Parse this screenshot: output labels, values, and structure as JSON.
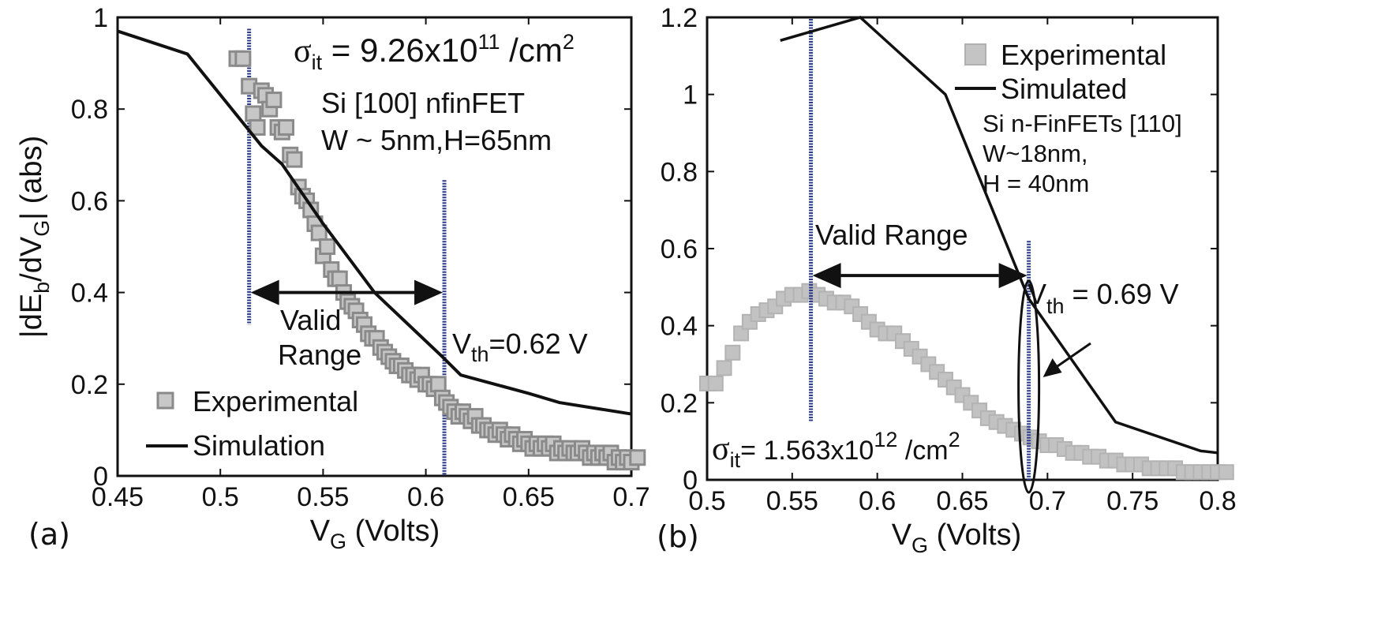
{
  "chart_data": [
    {
      "panel": "(a)",
      "type": "scatter",
      "xlabel": "V_G (Volts)",
      "ylabel": "|dE_b/dV_G| (abs)",
      "xlim": [
        0.45,
        0.7
      ],
      "ylim": [
        0,
        1
      ],
      "x_ticks": [
        "0.45",
        "0.5",
        "0.55",
        "0.6",
        "0.65",
        "0.7"
      ],
      "y_ticks": [
        "0",
        "0.2",
        "0.4",
        "0.6",
        "0.8",
        "1"
      ],
      "legend": [
        {
          "name": "Experimental"
        },
        {
          "name": "Simulation"
        }
      ],
      "legend_position": "bottom-left",
      "annotations": {
        "sigma": "σ",
        "sigma_sub": "it",
        "sigma_value": " = 9.26x10",
        "sigma_exp": "11",
        "sigma_unit": " /cm",
        "sigma_unit_exp": "2",
        "device_line1": "Si [100] nfinFET",
        "device_line2": "W ~ 5nm,H=65nm",
        "valid_line1": "Valid",
        "valid_line2": "Range",
        "vth_main": "V",
        "vth_sub": "th",
        "vth_value": "=0.62 V"
      },
      "valid_range": [
        0.514,
        0.609
      ],
      "valid_arrow_y": 0.4,
      "vlines": [
        0.514,
        0.609
      ],
      "series": [
        {
          "name": "Experimental",
          "marker": "square",
          "color": "#9a9a9a",
          "x": [
            0.508,
            0.511,
            0.514,
            0.516,
            0.518,
            0.52,
            0.522,
            0.524,
            0.526,
            0.528,
            0.53,
            0.532,
            0.534,
            0.536,
            0.538,
            0.54,
            0.542,
            0.544,
            0.546,
            0.548,
            0.55,
            0.552,
            0.554,
            0.556,
            0.558,
            0.56,
            0.562,
            0.564,
            0.566,
            0.568,
            0.57,
            0.572,
            0.574,
            0.576,
            0.578,
            0.58,
            0.582,
            0.584,
            0.586,
            0.588,
            0.59,
            0.592,
            0.594,
            0.596,
            0.598,
            0.6,
            0.602,
            0.604,
            0.606,
            0.608,
            0.61,
            0.612,
            0.614,
            0.616,
            0.618,
            0.62,
            0.622,
            0.624,
            0.626,
            0.628,
            0.63,
            0.632,
            0.634,
            0.636,
            0.638,
            0.64,
            0.642,
            0.644,
            0.646,
            0.648,
            0.65,
            0.652,
            0.654,
            0.656,
            0.658,
            0.66,
            0.662,
            0.664,
            0.666,
            0.668,
            0.67,
            0.672,
            0.674,
            0.676,
            0.678,
            0.68,
            0.682,
            0.684,
            0.686,
            0.688,
            0.69,
            0.692,
            0.694,
            0.696,
            0.698,
            0.7,
            0.703
          ],
          "y": [
            0.91,
            0.91,
            0.85,
            0.79,
            0.76,
            0.84,
            0.83,
            0.8,
            0.82,
            0.76,
            0.75,
            0.76,
            0.7,
            0.69,
            0.63,
            0.61,
            0.6,
            0.58,
            0.55,
            0.53,
            0.48,
            0.5,
            0.45,
            0.43,
            0.43,
            0.4,
            0.38,
            0.37,
            0.36,
            0.34,
            0.33,
            0.31,
            0.3,
            0.3,
            0.28,
            0.27,
            0.26,
            0.25,
            0.24,
            0.24,
            0.23,
            0.22,
            0.22,
            0.21,
            0.22,
            0.2,
            0.2,
            0.19,
            0.2,
            0.17,
            0.16,
            0.15,
            0.14,
            0.13,
            0.14,
            0.13,
            0.12,
            0.13,
            0.11,
            0.11,
            0.1,
            0.1,
            0.09,
            0.1,
            0.09,
            0.08,
            0.09,
            0.08,
            0.07,
            0.08,
            0.07,
            0.06,
            0.07,
            0.06,
            0.07,
            0.06,
            0.07,
            0.05,
            0.06,
            0.05,
            0.06,
            0.05,
            0.05,
            0.06,
            0.05,
            0.04,
            0.05,
            0.04,
            0.05,
            0.04,
            0.05,
            0.03,
            0.04,
            0.03,
            0.04,
            0.03,
            0.04
          ]
        },
        {
          "name": "Simulation",
          "marker": "line",
          "color": "#111111",
          "x": [
            0.45,
            0.484,
            0.52,
            0.53,
            0.55,
            0.575,
            0.608,
            0.617,
            0.65,
            0.665,
            0.7
          ],
          "y": [
            0.97,
            0.92,
            0.72,
            0.68,
            0.55,
            0.4,
            0.26,
            0.22,
            0.18,
            0.16,
            0.135
          ]
        }
      ]
    },
    {
      "panel": "(b)",
      "type": "scatter",
      "xlabel": "V_G (Volts)",
      "xlim": [
        0.5,
        0.8
      ],
      "ylim": [
        0,
        1.2
      ],
      "x_ticks": [
        "0.5",
        "0.55",
        "0.6",
        "0.65",
        "0.7",
        "0.75",
        "0.8"
      ],
      "y_ticks": [
        "0",
        "0.2",
        "0.4",
        "0.6",
        "0.8",
        "1",
        "1.2"
      ],
      "legend": [
        {
          "name": "Experimental"
        },
        {
          "name": "Simulated"
        }
      ],
      "legend_position": "top-right",
      "annotations": {
        "device_line1": "Si n-FinFETs [110]",
        "device_line2": "W~18nm,",
        "device_line3": "H = 40nm",
        "valid": "Valid Range",
        "vth_main": "V",
        "vth_sub": "th",
        "vth_value": " = 0.69 V",
        "sigma": "σ",
        "sigma_sub": "it",
        "sigma_value": "= 1.563x10",
        "sigma_exp": "12",
        "sigma_unit": " /cm",
        "sigma_unit_exp": "2"
      },
      "valid_range": [
        0.561,
        0.689
      ],
      "valid_arrow_y": 0.53,
      "vlines": [
        0.561,
        0.689
      ],
      "ellipse_at": {
        "x": 0.689,
        "y_min": 0.0,
        "y_max": 0.5
      },
      "series": [
        {
          "name": "Experimental",
          "marker": "square",
          "color": "#b8b8b8",
          "x": [
            0.5,
            0.505,
            0.51,
            0.515,
            0.52,
            0.525,
            0.53,
            0.535,
            0.54,
            0.545,
            0.55,
            0.555,
            0.56,
            0.565,
            0.57,
            0.575,
            0.58,
            0.585,
            0.59,
            0.595,
            0.6,
            0.605,
            0.61,
            0.615,
            0.62,
            0.625,
            0.63,
            0.635,
            0.64,
            0.645,
            0.65,
            0.655,
            0.66,
            0.665,
            0.67,
            0.675,
            0.68,
            0.685,
            0.69,
            0.695,
            0.7,
            0.705,
            0.71,
            0.715,
            0.72,
            0.725,
            0.73,
            0.735,
            0.74,
            0.745,
            0.75,
            0.755,
            0.76,
            0.765,
            0.77,
            0.775,
            0.78,
            0.785,
            0.79,
            0.795,
            0.8,
            0.805
          ],
          "y": [
            0.25,
            0.25,
            0.29,
            0.33,
            0.38,
            0.41,
            0.43,
            0.44,
            0.45,
            0.47,
            0.48,
            0.48,
            0.49,
            0.48,
            0.47,
            0.46,
            0.46,
            0.45,
            0.43,
            0.41,
            0.39,
            0.38,
            0.38,
            0.36,
            0.34,
            0.32,
            0.3,
            0.28,
            0.26,
            0.24,
            0.22,
            0.2,
            0.18,
            0.16,
            0.15,
            0.14,
            0.13,
            0.12,
            0.11,
            0.1,
            0.09,
            0.09,
            0.08,
            0.07,
            0.07,
            0.06,
            0.06,
            0.05,
            0.05,
            0.04,
            0.04,
            0.04,
            0.03,
            0.03,
            0.03,
            0.03,
            0.02,
            0.02,
            0.02,
            0.02,
            0.02,
            0.02
          ]
        },
        {
          "name": "Simulated",
          "marker": "line",
          "color": "#111111",
          "x": [
            0.543,
            0.59,
            0.64,
            0.689,
            0.74,
            0.79,
            0.8
          ],
          "y": [
            1.14,
            1.2,
            1.0,
            0.47,
            0.15,
            0.075,
            0.07
          ]
        }
      ]
    }
  ]
}
